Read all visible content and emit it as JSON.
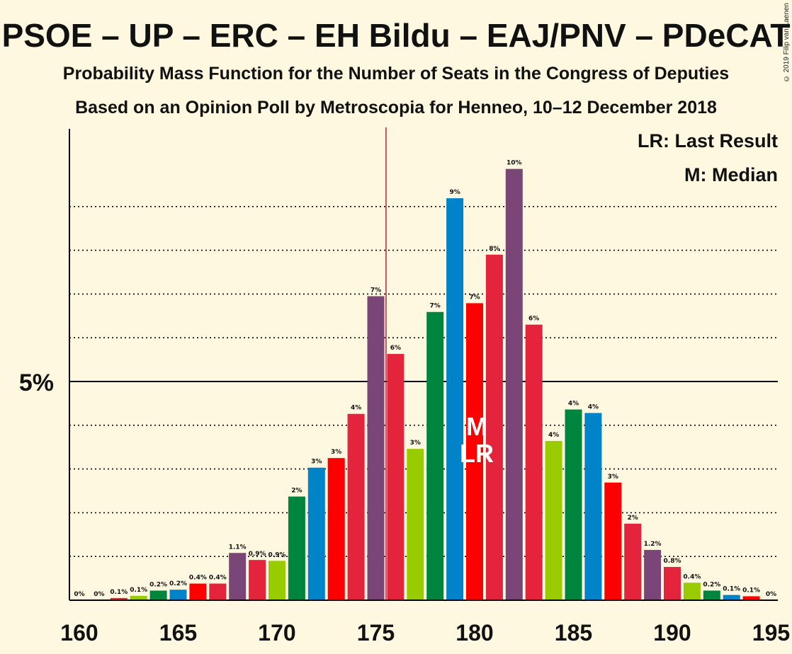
{
  "chart_data": {
    "type": "bar",
    "title": "PSOE – UP – ERC – EH Bildu – EAJ/PNV – PDeCAT",
    "subtitle": "Probability Mass Function for the Number of Seats in the Congress of Deputies",
    "subtitle2": "Based on an Opinion Poll by Metroscopia for Henneo, 10–12 December 2018",
    "copyright": "© 2019 Filip van Laenen",
    "legend": {
      "lr": "LR: Last Result",
      "m": "M: Median"
    },
    "y_tick_label": "5%",
    "y_tick_value": 5,
    "ylim": [
      0,
      10.75
    ],
    "gridlines": [
      1,
      2,
      3,
      4,
      6,
      7,
      8,
      9
    ],
    "x_ticks": [
      "160",
      "165",
      "170",
      "175",
      "180",
      "185",
      "190",
      "195"
    ],
    "x_range": [
      160,
      195
    ],
    "last_result_seat": 176,
    "median_seat": 180,
    "median_marker": "M",
    "last_result_marker": "LR",
    "colors": [
      "#e3243c",
      "#7a4577",
      "#e3243c",
      "#99cc00",
      "#00853f",
      "#0083c8",
      "#ff0000"
    ],
    "bars": [
      {
        "seat": 160,
        "value": 0.0,
        "label": "0%"
      },
      {
        "seat": 161,
        "value": 0.0,
        "label": "0%"
      },
      {
        "seat": 162,
        "value": 0.05,
        "label": "0.1%"
      },
      {
        "seat": 163,
        "value": 0.1,
        "label": "0.1%"
      },
      {
        "seat": 164,
        "value": 0.22,
        "label": "0.2%"
      },
      {
        "seat": 165,
        "value": 0.24,
        "label": "0.2%"
      },
      {
        "seat": 166,
        "value": 0.38,
        "label": "0.4%"
      },
      {
        "seat": 167,
        "value": 0.38,
        "label": "0.4%"
      },
      {
        "seat": 168,
        "value": 1.08,
        "label": "1.1%"
      },
      {
        "seat": 169,
        "value": 0.92,
        "label": "0.9%"
      },
      {
        "seat": 170,
        "value": 0.9,
        "label": "0.9%"
      },
      {
        "seat": 171,
        "value": 2.37,
        "label": "2%"
      },
      {
        "seat": 172,
        "value": 3.03,
        "label": "3%"
      },
      {
        "seat": 173,
        "value": 3.25,
        "label": "3%"
      },
      {
        "seat": 174,
        "value": 4.26,
        "label": "4%"
      },
      {
        "seat": 175,
        "value": 6.95,
        "label": "7%"
      },
      {
        "seat": 176,
        "value": 5.63,
        "label": "6%"
      },
      {
        "seat": 177,
        "value": 3.46,
        "label": "3%"
      },
      {
        "seat": 178,
        "value": 6.59,
        "label": "7%"
      },
      {
        "seat": 179,
        "value": 9.19,
        "label": "9%"
      },
      {
        "seat": 180,
        "value": 6.79,
        "label": "7%"
      },
      {
        "seat": 181,
        "value": 7.9,
        "label": "8%"
      },
      {
        "seat": 182,
        "value": 9.86,
        "label": "10%"
      },
      {
        "seat": 183,
        "value": 6.3,
        "label": "6%"
      },
      {
        "seat": 184,
        "value": 3.64,
        "label": "4%"
      },
      {
        "seat": 185,
        "value": 4.36,
        "label": "4%"
      },
      {
        "seat": 186,
        "value": 4.28,
        "label": "4%"
      },
      {
        "seat": 187,
        "value": 2.69,
        "label": "3%"
      },
      {
        "seat": 188,
        "value": 1.75,
        "label": "2%"
      },
      {
        "seat": 189,
        "value": 1.15,
        "label": "1.2%"
      },
      {
        "seat": 190,
        "value": 0.76,
        "label": "0.8%"
      },
      {
        "seat": 191,
        "value": 0.4,
        "label": "0.4%"
      },
      {
        "seat": 192,
        "value": 0.22,
        "label": "0.2%"
      },
      {
        "seat": 193,
        "value": 0.12,
        "label": "0.1%"
      },
      {
        "seat": 194,
        "value": 0.09,
        "label": "0.1%"
      },
      {
        "seat": 195,
        "value": 0.0,
        "label": "0%"
      }
    ]
  }
}
